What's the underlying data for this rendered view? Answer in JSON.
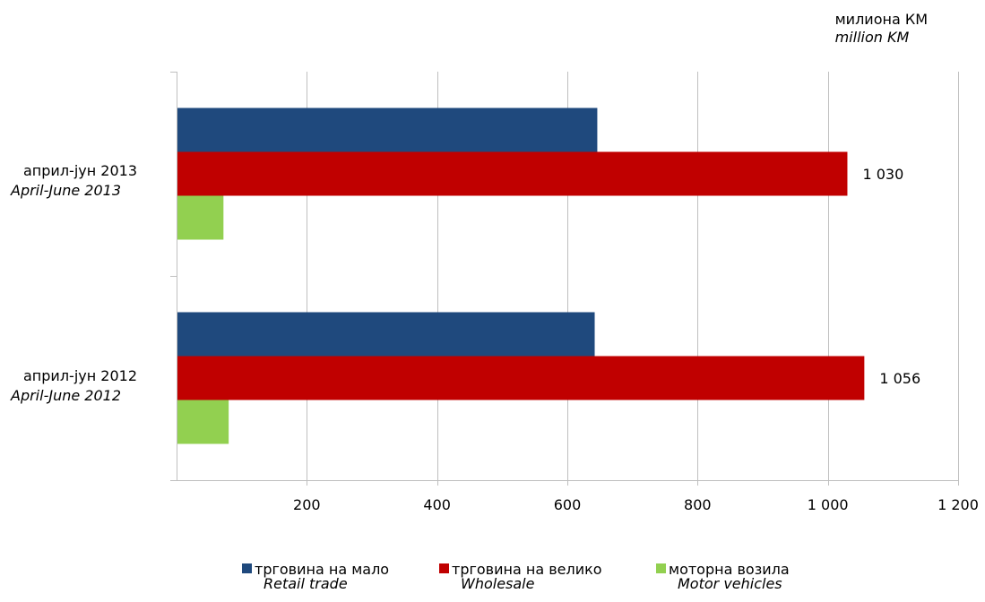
{
  "unit": {
    "label": "милиона КМ",
    "label_en": "million KM"
  },
  "colors": {
    "retail": "#1f497d",
    "wholesale": "#c00000",
    "motor": "#92d050",
    "grid": "#bfbfbf"
  },
  "chart_data": {
    "type": "bar",
    "orientation": "horizontal",
    "categories": [
      {
        "label": "април-јун 2013",
        "label_en": "April-June  2013"
      },
      {
        "label": "април-јун 2012",
        "label_en": "April-June  2012"
      }
    ],
    "series": [
      {
        "name": "трговина на мало",
        "name_en": "Retail trade",
        "values": [
          646,
          642
        ]
      },
      {
        "name": "трговина на велико",
        "name_en": "Wholesale",
        "values": [
          1030,
          1056
        ],
        "data_labels": [
          "1 030",
          "1 056"
        ]
      },
      {
        "name": "моторна возила",
        "name_en": "Motor vehicles",
        "values": [
          72,
          80
        ]
      }
    ],
    "xlim": [
      0,
      1200
    ],
    "xticks": [
      200,
      400,
      600,
      800,
      1000,
      1200
    ],
    "xtick_labels": [
      "200",
      "400",
      "600",
      "800",
      "1 000",
      "1 200"
    ],
    "grid": true,
    "legend": "bottom"
  }
}
